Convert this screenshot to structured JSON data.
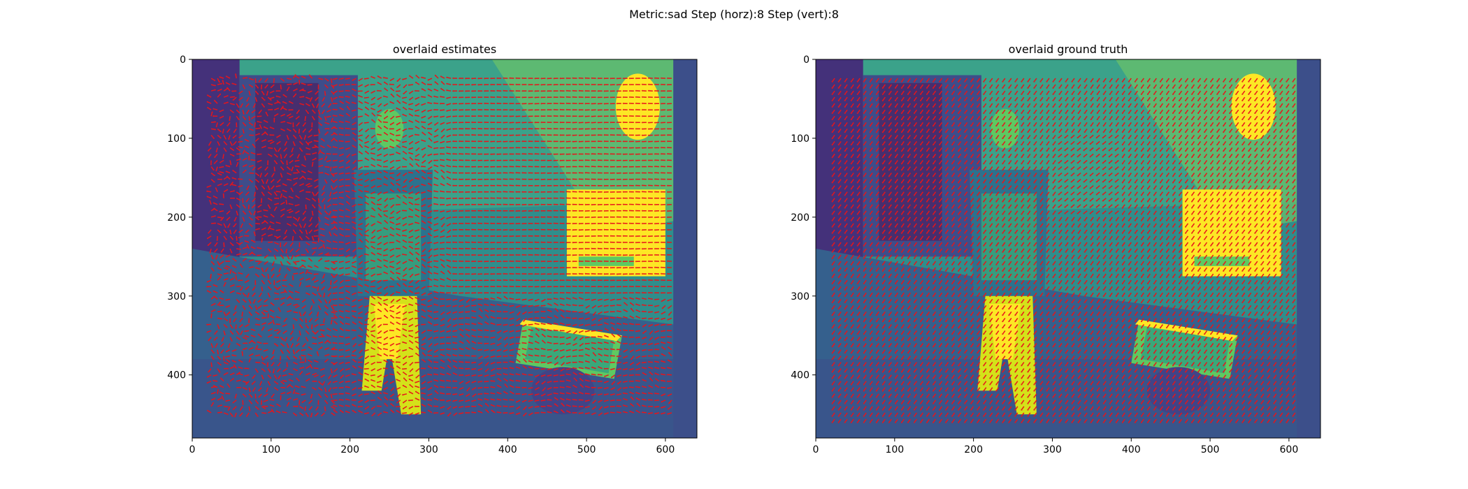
{
  "figure": {
    "suptitle": "Metric:sad Step (horz):8 Step (vert):8"
  },
  "colors": {
    "background": "#ffffff",
    "arrow": "#e8141a",
    "colormap": "viridis",
    "viridis_dark": "#46327e",
    "viridis_mid": "#21918c",
    "viridis_light": "#5ec962",
    "viridis_bright": "#fde725"
  },
  "chart_data": [
    {
      "type": "image_with_quiver",
      "title": "overlaid estimates",
      "xlabel": "",
      "ylabel": "",
      "xlim": [
        0,
        640
      ],
      "ylim": [
        480,
        0
      ],
      "xticks": [
        0,
        100,
        200,
        300,
        400,
        500,
        600
      ],
      "yticks": [
        0,
        100,
        200,
        300,
        400
      ],
      "image": "grayscale frame of a person walking in a room, viridis colormap",
      "quiver": {
        "step_horz": 8,
        "step_vert": 8,
        "grid_x": [
          24,
          608
        ],
        "grid_y": [
          24,
          448
        ],
        "color": "red",
        "pattern": "noisy estimated motion vectors, strong leftward motion in middle and upper-right regions"
      }
    },
    {
      "type": "image_with_quiver",
      "title": "overlaid ground truth",
      "xlabel": "",
      "ylabel": "",
      "xlim": [
        0,
        640
      ],
      "ylim": [
        480,
        0
      ],
      "xticks": [
        0,
        100,
        200,
        300,
        400,
        500,
        600
      ],
      "yticks": [
        0,
        100,
        200,
        300,
        400
      ],
      "image": "grayscale frame of a person walking in a room, viridis colormap",
      "quiver": {
        "step_horz": 8,
        "step_vert": 8,
        "grid_x": [
          24,
          608
        ],
        "grid_y": [
          24,
          456
        ],
        "color": "red",
        "pattern": "smooth ground-truth vectors, mostly small, pointing down-left"
      }
    }
  ]
}
